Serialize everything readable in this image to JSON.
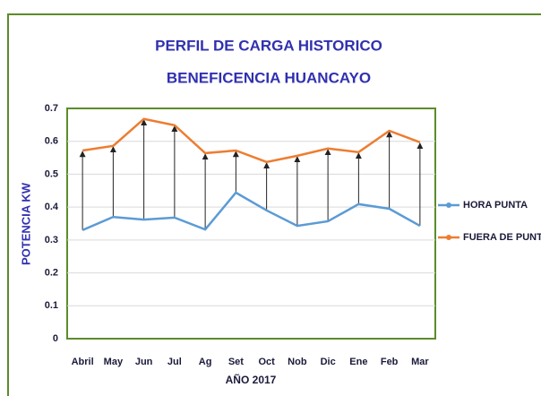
{
  "chart_data": {
    "type": "line",
    "title": [
      "PERFIL DE CARGA HISTORICO",
      "BENEFICENCIA HUANCAYO"
    ],
    "xlabel": "AÑO 2017",
    "ylabel": "POTENCIA KW",
    "categories": [
      "Abril",
      "May",
      "Jun",
      "Jul",
      "Ag",
      "Set",
      "Oct",
      "Nob",
      "Dic",
      "Ene",
      "Feb",
      "Mar"
    ],
    "series": [
      {
        "name": "HORA PUNTA",
        "color": "#5b9bd5",
        "values": [
          0.33,
          0.37,
          0.362,
          0.368,
          0.332,
          0.444,
          0.39,
          0.343,
          0.357,
          0.409,
          0.395,
          0.343
        ]
      },
      {
        "name": "FUERA DE PUNT",
        "color": "#ed7d31",
        "values": [
          0.572,
          0.586,
          0.668,
          0.649,
          0.564,
          0.572,
          0.537,
          0.556,
          0.578,
          0.567,
          0.632,
          0.597
        ]
      }
    ],
    "ylim": [
      0,
      0.7
    ],
    "yticks": [
      0,
      0.1,
      0.2,
      0.3,
      0.4,
      0.5,
      0.6,
      0.7
    ],
    "grid": true,
    "legend": "right"
  }
}
